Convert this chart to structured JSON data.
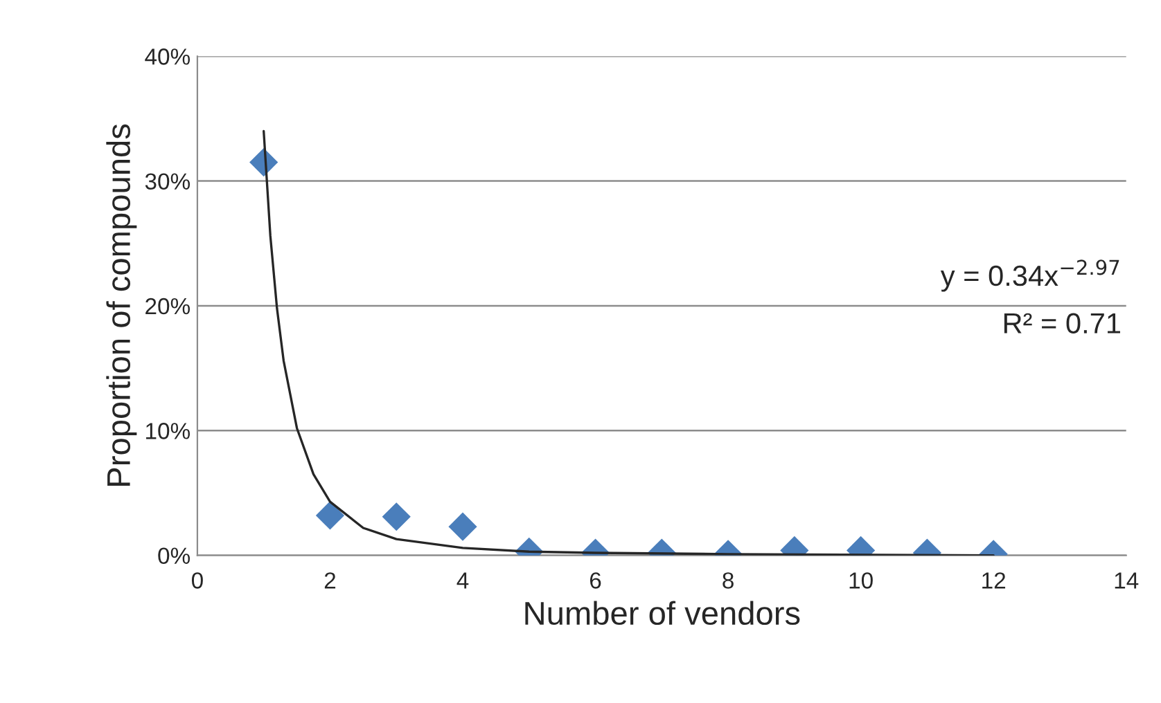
{
  "chart_data": {
    "type": "scatter",
    "xlabel": "Number of vendors",
    "ylabel": "Proportion of compounds",
    "x": [
      1,
      2,
      3,
      4,
      5,
      6,
      7,
      8,
      9,
      10,
      11,
      12
    ],
    "series": [
      {
        "color": "#4a7ebb",
        "marker": "diamond",
        "values": [
          31.5,
          3.2,
          3.1,
          2.3,
          0.3,
          0.2,
          0.2,
          0.1,
          0.4,
          0.4,
          0.2,
          0.1
        ]
      },
      {
        "type": "line",
        "color": "#262626",
        "marker": "none",
        "x": [
          1,
          1.1,
          1.2,
          1.3,
          1.5,
          1.75,
          2,
          2.5,
          3,
          4,
          5,
          6,
          8,
          12
        ],
        "values": [
          34,
          25.6,
          19.8,
          15.6,
          10.2,
          6.5,
          4.3,
          2.2,
          1.3,
          0.6,
          0.3,
          0.2,
          0.1,
          0.0
        ]
      }
    ],
    "xlim": [
      0,
      14
    ],
    "xticks": [
      0,
      2,
      4,
      6,
      8,
      10,
      12,
      14
    ],
    "ylim": [
      0,
      40
    ],
    "yticks": [
      {
        "value": 0,
        "label": "0%"
      },
      {
        "value": 10,
        "label": "10%"
      },
      {
        "value": 20,
        "label": "20%"
      },
      {
        "value": 30,
        "label": "30%"
      },
      {
        "value": 40,
        "label": "40%"
      }
    ],
    "grid": "y",
    "legend": false,
    "annotations": [
      "y = 0.34x$^{−2.97}$",
      "R² = 0.71"
    ]
  }
}
